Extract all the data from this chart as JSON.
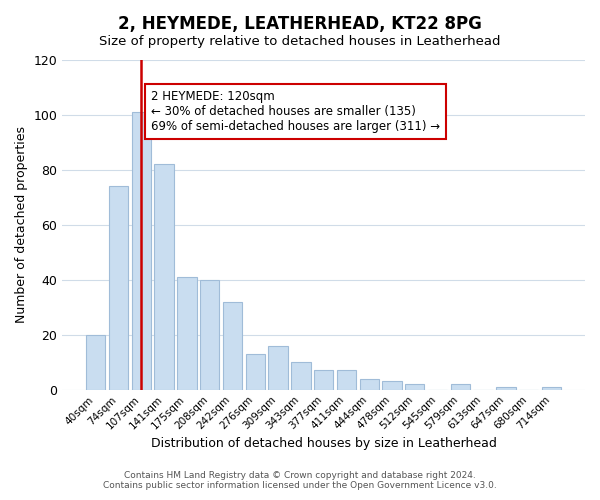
{
  "title": "2, HEYMEDE, LEATHERHEAD, KT22 8PG",
  "subtitle": "Size of property relative to detached houses in Leatherhead",
  "xlabel": "Distribution of detached houses by size in Leatherhead",
  "ylabel": "Number of detached properties",
  "bar_labels": [
    "40sqm",
    "74sqm",
    "107sqm",
    "141sqm",
    "175sqm",
    "208sqm",
    "242sqm",
    "276sqm",
    "309sqm",
    "343sqm",
    "377sqm",
    "411sqm",
    "444sqm",
    "478sqm",
    "512sqm",
    "545sqm",
    "579sqm",
    "613sqm",
    "647sqm",
    "680sqm",
    "714sqm"
  ],
  "bar_heights": [
    20,
    74,
    101,
    82,
    41,
    40,
    32,
    13,
    16,
    10,
    7,
    7,
    4,
    3,
    2,
    0,
    2,
    0,
    1,
    0,
    1
  ],
  "bar_color": "#c9ddf0",
  "bar_edge_color": "#a0bcd8",
  "vline_x": 2,
  "vline_color": "#cc0000",
  "ylim": [
    0,
    120
  ],
  "yticks": [
    0,
    20,
    40,
    60,
    80,
    100,
    120
  ],
  "annotation_title": "2 HEYMEDE: 120sqm",
  "annotation_line1": "← 30% of detached houses are smaller (135)",
  "annotation_line2": "69% of semi-detached houses are larger (311) →",
  "annotation_box_color": "#ffffff",
  "annotation_box_edge": "#cc0000",
  "footer_line1": "Contains HM Land Registry data © Crown copyright and database right 2024.",
  "footer_line2": "Contains public sector information licensed under the Open Government Licence v3.0.",
  "background_color": "#ffffff",
  "grid_color": "#d0dce8"
}
